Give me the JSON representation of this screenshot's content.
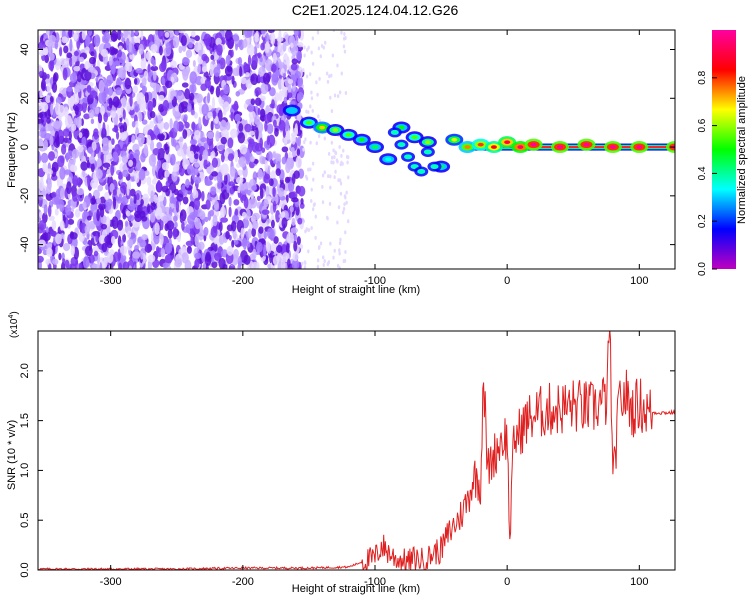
{
  "figure": {
    "title": "C2E1.2025.124.04.12.G26"
  },
  "colors": {
    "axis": "#000000",
    "snr_line": "#e02020",
    "speckle_palette": [
      "#e6d9ff",
      "#c9b0ff",
      "#a57bff",
      "#7a36f0",
      "#5a10d8"
    ],
    "colormap_stops": [
      "#c000c0",
      "#0000ff",
      "#00ffff",
      "#00ff00",
      "#ffff00",
      "#ff0000",
      "#ff00a0"
    ]
  },
  "chart_data": [
    {
      "type": "heatmap",
      "xlabel": "Height of straight line (km)",
      "ylabel": "Frequency (Hz)",
      "xlim": [
        -355,
        127
      ],
      "ylim": [
        -50,
        48
      ],
      "x_ticks": [
        -300,
        -200,
        -100,
        0,
        100
      ],
      "y_ticks": [
        -40,
        -20,
        0,
        20,
        40
      ],
      "grid": false,
      "colorbar": {
        "label": "Normalized spectral amplitude",
        "range": [
          0,
          1
        ],
        "ticks": [
          "0.0",
          "0.2",
          "0.4",
          "0.6",
          "0.8"
        ],
        "tick_values": [
          0,
          0.2,
          0.4,
          0.6,
          0.8
        ]
      },
      "noise_region_x": [
        -355,
        -155
      ],
      "sparse_noise_region_x": [
        -155,
        -120
      ],
      "signal_track": {
        "x": [
          -163,
          -150,
          -140,
          -130,
          -120,
          -110,
          -100,
          -90,
          -80,
          -70,
          -60,
          -50,
          -40,
          -30,
          -20,
          -10,
          0,
          10,
          20,
          40,
          60,
          80,
          100,
          127
        ],
        "y": [
          15,
          10,
          8,
          7,
          5,
          3,
          0,
          -5,
          8,
          4,
          2,
          -8,
          3,
          0,
          1,
          0,
          2,
          0,
          1,
          0,
          1,
          0,
          0,
          0
        ],
        "strength": [
          0.3,
          0.55,
          0.7,
          0.6,
          0.55,
          0.5,
          0.45,
          0.35,
          0.5,
          0.55,
          0.6,
          0.45,
          0.65,
          0.75,
          0.8,
          0.85,
          0.9,
          0.95,
          1.0,
          1.0,
          1.0,
          1.0,
          1.0,
          1.0
        ]
      },
      "secondary_track": {
        "x": [
          -85,
          -80,
          -75,
          -70,
          -65,
          -60,
          -55
        ],
        "y": [
          6,
          1,
          -4,
          -8,
          -10,
          -2,
          -8
        ]
      },
      "carrier_line": {
        "x_start": -30,
        "x_end": 127,
        "y": 0
      }
    },
    {
      "type": "line",
      "xlabel": "Height of straight line (km)",
      "ylabel": "SNR (10 * v/v)",
      "y_scale_label": "(x10",
      "y_scale_exponent": "4",
      "y_scale_close": ")",
      "xlim": [
        -355,
        127
      ],
      "ylim": [
        0,
        2.4
      ],
      "x_ticks": [
        -300,
        -200,
        -100,
        0,
        100
      ],
      "y_ticks": [
        0.0,
        0.5,
        1.0,
        1.5,
        2.0
      ],
      "y_tick_labels": [
        "0.0",
        "0.5",
        "1.0",
        "1.5",
        "2.0"
      ],
      "grid": false,
      "series": [
        {
          "x": [
            -355,
            -300,
            -250,
            -200,
            -150,
            -120,
            -110,
            -100,
            -95,
            -90,
            -85,
            -80,
            -75,
            -70,
            -65,
            -60,
            -55,
            -50,
            -45,
            -40,
            -35,
            -30,
            -25,
            -20,
            -18,
            -15,
            -10,
            -5,
            0,
            2,
            5,
            10,
            15,
            20,
            25,
            30,
            35,
            40,
            50,
            60,
            65,
            70,
            75,
            78,
            80,
            85,
            90,
            95,
            100,
            105,
            110,
            127
          ],
          "y": [
            0.01,
            0.01,
            0.01,
            0.02,
            0.02,
            0.03,
            0.08,
            0.12,
            0.25,
            0.18,
            0.12,
            0.1,
            0.08,
            0.12,
            0.1,
            0.12,
            0.18,
            0.2,
            0.35,
            0.45,
            0.55,
            0.7,
            0.95,
            0.85,
            2.05,
            1.0,
            1.15,
            1.3,
            1.35,
            0.3,
            1.3,
            1.4,
            1.5,
            1.55,
            1.58,
            1.6,
            1.62,
            1.62,
            1.65,
            1.63,
            1.62,
            1.68,
            1.7,
            2.35,
            0.85,
            1.7,
            1.75,
            1.6,
            1.68,
            1.6,
            1.58,
            1.58
          ]
        }
      ]
    }
  ]
}
